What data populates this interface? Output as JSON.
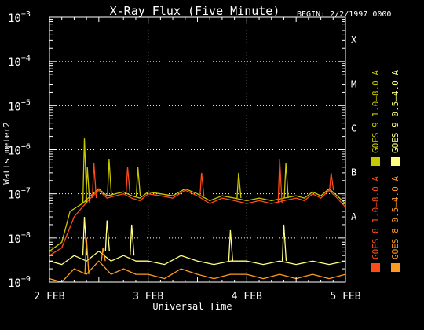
{
  "chart_data": {
    "type": "line",
    "title": "X-Ray Flux (Five Minute)",
    "begin_label": "BEGIN: 2/2/1997 0000",
    "xlabel": "Universal Time",
    "ylabel": "Watts meter2",
    "x_range": [
      "1997-02-02T00:00",
      "1997-02-05T00:00"
    ],
    "x_ticks": [
      {
        "t": "1997-02-02T00:00",
        "label": "2 FEB"
      },
      {
        "t": "1997-02-03T00:00",
        "label": "3 FEB"
      },
      {
        "t": "1997-02-04T00:00",
        "label": "4 FEB"
      },
      {
        "t": "1997-02-05T00:00",
        "label": "5 FEB"
      }
    ],
    "y_scale": "log",
    "y_range": [
      1e-09,
      0.001
    ],
    "y_ticks": [
      {
        "value": 0.001,
        "mantissa": "10",
        "exp": "−3"
      },
      {
        "value": 0.0001,
        "mantissa": "10",
        "exp": "−4"
      },
      {
        "value": 1e-05,
        "mantissa": "10",
        "exp": "−5"
      },
      {
        "value": 1e-06,
        "mantissa": "10",
        "exp": "−6"
      },
      {
        "value": 1e-07,
        "mantissa": "10",
        "exp": "−7"
      },
      {
        "value": 1e-08,
        "mantissa": "10",
        "exp": "−8"
      },
      {
        "value": 1e-09,
        "mantissa": "10",
        "exp": "−9"
      }
    ],
    "flare_classes": [
      {
        "label": "X",
        "at": 0.000316
      },
      {
        "label": "M",
        "at": 3.16e-05
      },
      {
        "label": "C",
        "at": 3.16e-06
      },
      {
        "label": "B",
        "at": 3.16e-07
      },
      {
        "label": "A",
        "at": 3.16e-08
      }
    ],
    "grid": "dotted",
    "legend_placement": "right-vertical",
    "series": [
      {
        "name": "GOES 8 1.0–8.0 A",
        "color": "#ff4a1a",
        "t_hours": [
          0,
          3,
          6,
          8,
          10,
          12,
          14,
          16,
          18,
          20,
          22,
          24,
          27,
          30,
          33,
          36,
          39,
          42,
          45,
          48,
          51,
          54,
          57,
          60,
          62,
          64,
          66,
          68,
          70,
          72
        ],
        "values": [
          4e-09,
          6e-09,
          3e-08,
          5e-08,
          8e-08,
          1.2e-07,
          8e-08,
          9e-08,
          1e-07,
          8e-08,
          7e-08,
          1e-07,
          9e-08,
          8e-08,
          1.2e-07,
          9e-08,
          6e-08,
          8e-08,
          7e-08,
          6e-08,
          7e-08,
          6e-08,
          7e-08,
          8e-08,
          7e-08,
          1e-07,
          8e-08,
          1.2e-07,
          8e-08,
          5e-08
        ]
      },
      {
        "name": "GOES 8 0.5–4.0 A",
        "color": "#ff9a20",
        "t_hours": [
          0,
          3,
          6,
          9,
          12,
          15,
          18,
          21,
          24,
          28,
          32,
          36,
          40,
          44,
          48,
          52,
          56,
          60,
          64,
          68,
          72
        ],
        "values": [
          1.2e-09,
          1e-09,
          2e-09,
          1.5e-09,
          3e-09,
          1.5e-09,
          2e-09,
          1.5e-09,
          1.5e-09,
          1.2e-09,
          2e-09,
          1.5e-09,
          1.2e-09,
          1.5e-09,
          1.5e-09,
          1.2e-09,
          1.5e-09,
          1.2e-09,
          1.5e-09,
          1.2e-09,
          1.5e-09
        ]
      },
      {
        "name": "GOES 9 1.0–8.0 A",
        "color": "#c8c800",
        "t_hours": [
          0,
          3,
          5,
          8,
          10,
          12,
          14,
          16,
          18,
          20,
          22,
          24,
          27,
          30,
          33,
          36,
          39,
          42,
          45,
          48,
          51,
          54,
          57,
          60,
          62,
          64,
          66,
          68,
          70,
          72
        ],
        "values": [
          5e-09,
          8e-09,
          4e-08,
          6e-08,
          9e-08,
          1.3e-07,
          9e-08,
          1e-07,
          1.1e-07,
          9e-08,
          8e-08,
          1.1e-07,
          1e-07,
          9e-08,
          1.3e-07,
          1e-07,
          7e-08,
          9e-08,
          8e-08,
          7e-08,
          8e-08,
          7e-08,
          8e-08,
          9e-08,
          8e-08,
          1.1e-07,
          9e-08,
          1.3e-07,
          9e-08,
          6e-08
        ]
      },
      {
        "name": "GOES 9 0.5–4.0 A",
        "color": "#ffff80",
        "t_hours": [
          0,
          3,
          6,
          9,
          12,
          15,
          18,
          21,
          24,
          28,
          32,
          36,
          40,
          44,
          48,
          52,
          56,
          60,
          64,
          68,
          72
        ],
        "values": [
          3e-09,
          2.5e-09,
          4e-09,
          3e-09,
          5e-09,
          3e-09,
          4e-09,
          3e-09,
          3e-09,
          2.5e-09,
          4e-09,
          3e-09,
          2.5e-09,
          3e-09,
          3e-09,
          2.5e-09,
          3e-09,
          2.5e-09,
          3e-09,
          2.5e-09,
          3e-09
        ]
      }
    ],
    "spikes": [
      {
        "series": 2,
        "t_hours": 8.5,
        "value": 1.8e-06
      },
      {
        "series": 2,
        "t_hours": 9.2,
        "value": 4e-07
      },
      {
        "series": 0,
        "t_hours": 10.8,
        "value": 5e-07
      },
      {
        "series": 2,
        "t_hours": 14.5,
        "value": 6e-07
      },
      {
        "series": 0,
        "t_hours": 19.0,
        "value": 4e-07
      },
      {
        "series": 2,
        "t_hours": 21.5,
        "value": 4e-07
      },
      {
        "series": 0,
        "t_hours": 37.0,
        "value": 3e-07
      },
      {
        "series": 2,
        "t_hours": 46.0,
        "value": 3e-07
      },
      {
        "series": 0,
        "t_hours": 56.0,
        "value": 6e-07
      },
      {
        "series": 2,
        "t_hours": 57.5,
        "value": 5e-07
      },
      {
        "series": 0,
        "t_hours": 68.5,
        "value": 3e-07
      },
      {
        "series": 3,
        "t_hours": 8.5,
        "value": 3e-08
      },
      {
        "series": 3,
        "t_hours": 14.0,
        "value": 2.5e-08
      },
      {
        "series": 3,
        "t_hours": 20.0,
        "value": 2e-08
      },
      {
        "series": 3,
        "t_hours": 44.0,
        "value": 1.5e-08
      },
      {
        "series": 3,
        "t_hours": 57.0,
        "value": 2e-08
      },
      {
        "series": 1,
        "t_hours": 9.0,
        "value": 1e-08
      },
      {
        "series": 1,
        "t_hours": 13.0,
        "value": 6e-09
      }
    ]
  }
}
